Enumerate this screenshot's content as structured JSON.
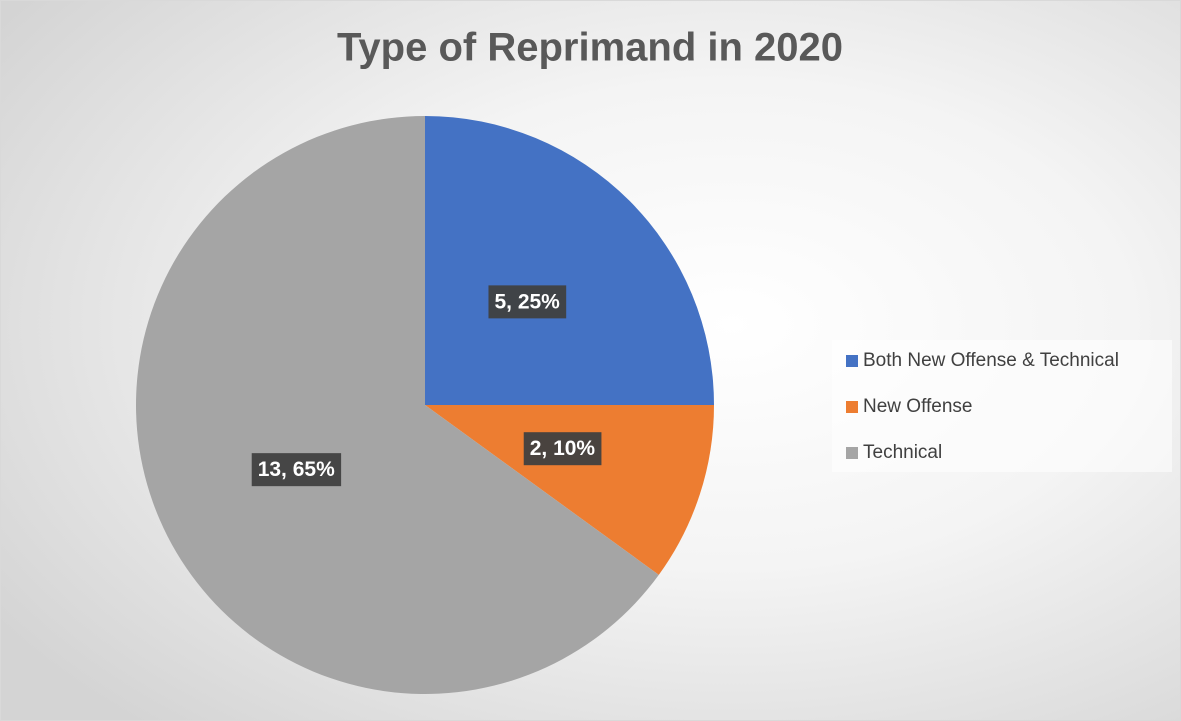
{
  "chart_data": {
    "type": "pie",
    "title": "Type of Reprimand in 2020",
    "categories": [
      "Both New Offense & Technical",
      "New Offense",
      "Technical"
    ],
    "values": [
      5,
      2,
      13
    ],
    "value_labels": [
      "5, 25%",
      "2, 10%",
      "13, 65%"
    ],
    "colors": [
      "#4472c4",
      "#ed7d31",
      "#a5a5a5"
    ],
    "legend": "right"
  }
}
